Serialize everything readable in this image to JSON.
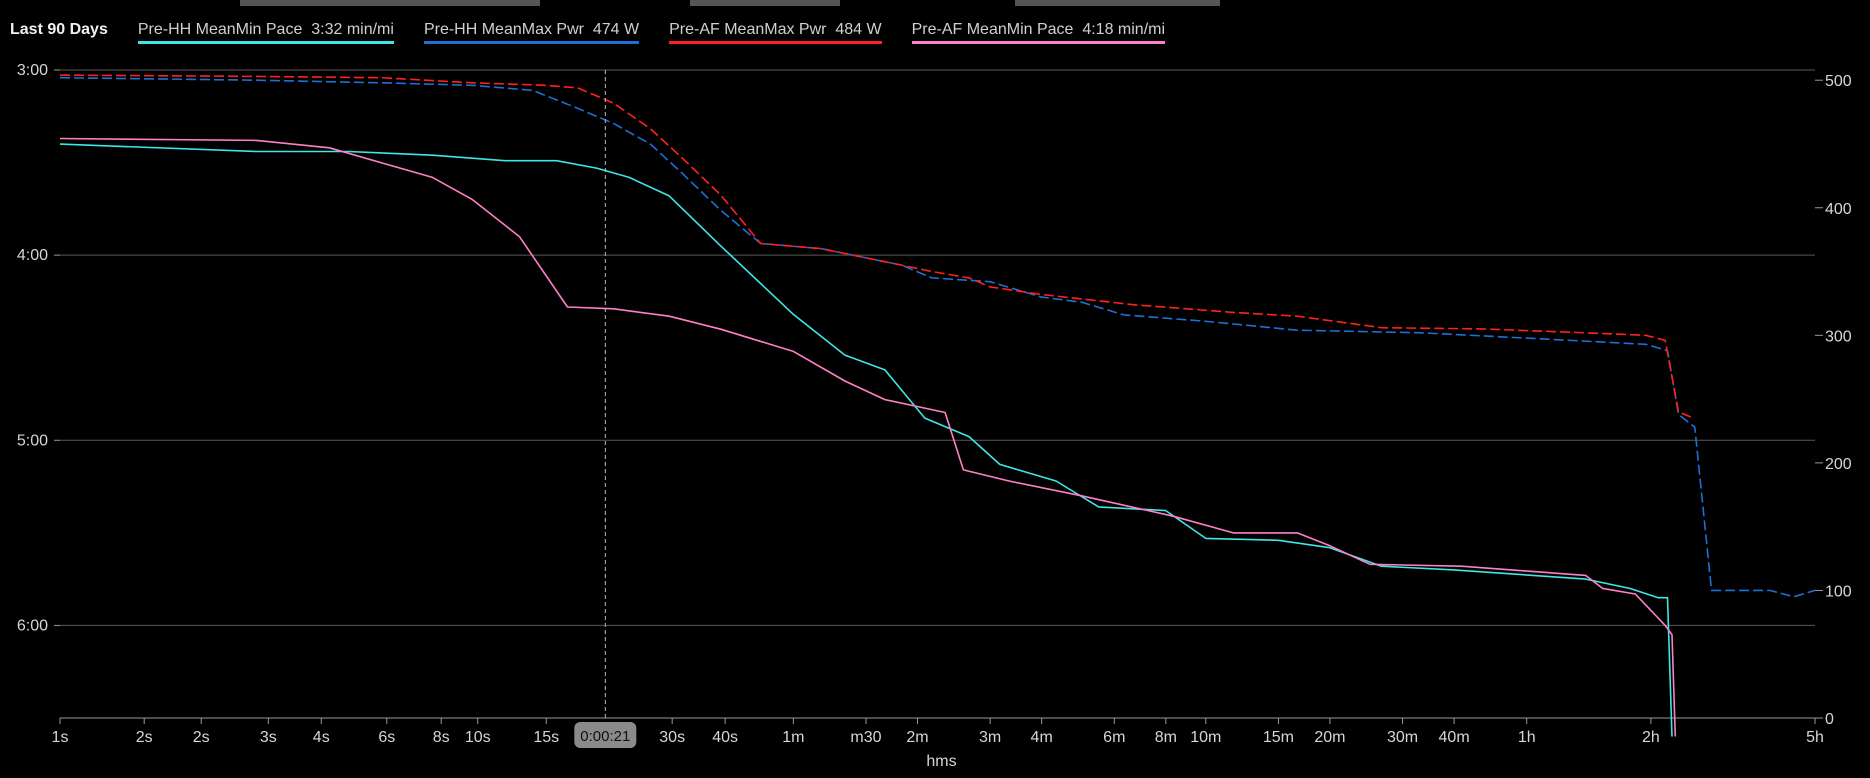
{
  "legend": {
    "period": "Last 90 Days",
    "items": [
      {
        "label": "Pre-HH MeanMin Pace  3:32 min/mi",
        "color": "#3ee6e6"
      },
      {
        "label": "Pre-HH MeanMax Pwr  474 W",
        "color": "#1f6fd6"
      },
      {
        "label": "Pre-AF MeanMax Pwr  484 W",
        "color": "#ff2020"
      },
      {
        "label": "Pre-AF MeanMin Pace  4:18 min/mi",
        "color": "#ff80c8"
      }
    ]
  },
  "cursor": {
    "label": "0:00:21",
    "x": 21
  },
  "chart_data": {
    "type": "line",
    "xlabel": "hms",
    "x_scale": "log",
    "x_range_seconds": [
      1,
      18000
    ],
    "x_ticks": [
      {
        "label": "1s",
        "s": 1
      },
      {
        "label": "2s",
        "s": 1.6
      },
      {
        "label": "2s",
        "s": 2.2
      },
      {
        "label": "3s",
        "s": 3.2
      },
      {
        "label": "4s",
        "s": 4.3
      },
      {
        "label": "6s",
        "s": 6.2
      },
      {
        "label": "8s",
        "s": 8.4
      },
      {
        "label": "10s",
        "s": 10.3
      },
      {
        "label": "15s",
        "s": 15.1
      },
      {
        "label": "30s",
        "s": 30.5
      },
      {
        "label": "40s",
        "s": 41
      },
      {
        "label": "1m",
        "s": 60
      },
      {
        "label": "m30",
        "s": 90
      },
      {
        "label": "2m",
        "s": 120
      },
      {
        "label": "3m",
        "s": 180
      },
      {
        "label": "4m",
        "s": 240
      },
      {
        "label": "6m",
        "s": 360
      },
      {
        "label": "8m",
        "s": 480
      },
      {
        "label": "10m",
        "s": 600
      },
      {
        "label": "15m",
        "s": 900
      },
      {
        "label": "20m",
        "s": 1200
      },
      {
        "label": "30m",
        "s": 1800
      },
      {
        "label": "40m",
        "s": 2400
      },
      {
        "label": "1h",
        "s": 3600
      },
      {
        "label": "2h",
        "s": 7200
      },
      {
        "label": "5h",
        "s": 18000
      }
    ],
    "y_left": {
      "unit": "min/mi",
      "range_minutes": [
        3.0,
        6.5
      ],
      "ticks": [
        {
          "label": "3:00",
          "v": 3.0
        },
        {
          "label": "4:00",
          "v": 4.0
        },
        {
          "label": "5:00",
          "v": 5.0
        },
        {
          "label": "6:00",
          "v": 6.0
        }
      ]
    },
    "y_right": {
      "unit": "W",
      "range": [
        0,
        508
      ],
      "ticks": [
        500,
        400,
        300,
        200,
        100,
        0
      ]
    },
    "series": [
      {
        "name": "Pre-HH MeanMin Pace  3:32 min/mi",
        "axis": "left",
        "style": "solid",
        "color": "#3ee6e6",
        "points": [
          [
            1,
            3.4
          ],
          [
            3,
            3.44
          ],
          [
            5,
            3.44
          ],
          [
            8,
            3.46
          ],
          [
            12,
            3.49
          ],
          [
            16,
            3.49
          ],
          [
            20,
            3.53
          ],
          [
            24,
            3.58
          ],
          [
            30,
            3.68
          ],
          [
            40,
            3.95
          ],
          [
            60,
            4.32
          ],
          [
            80,
            4.54
          ],
          [
            100,
            4.62
          ],
          [
            125,
            4.88
          ],
          [
            160,
            4.98
          ],
          [
            190,
            5.13
          ],
          [
            260,
            5.22
          ],
          [
            330,
            5.36
          ],
          [
            480,
            5.38
          ],
          [
            600,
            5.53
          ],
          [
            900,
            5.54
          ],
          [
            1200,
            5.58
          ],
          [
            1600,
            5.68
          ],
          [
            2400,
            5.7
          ],
          [
            5000,
            5.75
          ],
          [
            6400,
            5.8
          ],
          [
            7500,
            5.85
          ],
          [
            7900,
            5.85
          ],
          [
            8100,
            6.6
          ]
        ]
      },
      {
        "name": "Pre-HH MeanMax Pwr  474 W",
        "axis": "right",
        "style": "dashed",
        "color": "#1f6fd6",
        "points": [
          [
            1,
            502
          ],
          [
            3,
            500
          ],
          [
            6,
            498
          ],
          [
            10,
            496
          ],
          [
            14,
            492
          ],
          [
            18,
            478
          ],
          [
            22,
            466
          ],
          [
            27,
            450
          ],
          [
            32,
            428
          ],
          [
            40,
            398
          ],
          [
            50,
            372
          ],
          [
            70,
            368
          ],
          [
            110,
            355
          ],
          [
            130,
            345
          ],
          [
            180,
            342
          ],
          [
            240,
            330
          ],
          [
            300,
            326
          ],
          [
            380,
            316
          ],
          [
            600,
            311
          ],
          [
            1000,
            304
          ],
          [
            2000,
            302
          ],
          [
            4000,
            297
          ],
          [
            7000,
            293
          ],
          [
            7900,
            288
          ],
          [
            8400,
            238
          ],
          [
            9200,
            228
          ],
          [
            10100,
            100
          ],
          [
            14000,
            100
          ],
          [
            16000,
            95
          ],
          [
            18000,
            100
          ]
        ]
      },
      {
        "name": "Pre-AF MeanMax Pwr  484 W",
        "axis": "right",
        "style": "dashed",
        "color": "#ff2020",
        "points": [
          [
            1,
            504
          ],
          [
            3,
            503
          ],
          [
            6,
            502
          ],
          [
            10,
            498
          ],
          [
            15,
            496
          ],
          [
            18,
            494
          ],
          [
            22,
            482
          ],
          [
            27,
            462
          ],
          [
            32,
            440
          ],
          [
            40,
            410
          ],
          [
            50,
            372
          ],
          [
            70,
            368
          ],
          [
            110,
            355
          ],
          [
            130,
            350
          ],
          [
            160,
            345
          ],
          [
            180,
            338
          ],
          [
            240,
            332
          ],
          [
            400,
            324
          ],
          [
            700,
            318
          ],
          [
            1000,
            315
          ],
          [
            1600,
            306
          ],
          [
            2800,
            305
          ],
          [
            5000,
            302
          ],
          [
            7000,
            300
          ],
          [
            7800,
            296
          ],
          [
            8400,
            240
          ],
          [
            9000,
            236
          ]
        ]
      },
      {
        "name": "Pre-AF MeanMin Pace  4:18 min/mi",
        "axis": "left",
        "style": "solid",
        "color": "#ff80c8",
        "points": [
          [
            1,
            3.37
          ],
          [
            3,
            3.38
          ],
          [
            4.5,
            3.42
          ],
          [
            6,
            3.5
          ],
          [
            8,
            3.58
          ],
          [
            10,
            3.7
          ],
          [
            13,
            3.9
          ],
          [
            17,
            4.28
          ],
          [
            22,
            4.29
          ],
          [
            30,
            4.33
          ],
          [
            40,
            4.4
          ],
          [
            60,
            4.52
          ],
          [
            80,
            4.68
          ],
          [
            100,
            4.78
          ],
          [
            140,
            4.85
          ],
          [
            155,
            5.16
          ],
          [
            200,
            5.22
          ],
          [
            300,
            5.3
          ],
          [
            500,
            5.41
          ],
          [
            700,
            5.5
          ],
          [
            1000,
            5.5
          ],
          [
            1200,
            5.57
          ],
          [
            1500,
            5.67
          ],
          [
            2500,
            5.68
          ],
          [
            5000,
            5.73
          ],
          [
            5500,
            5.8
          ],
          [
            6600,
            5.83
          ],
          [
            7800,
            6.0
          ],
          [
            8100,
            6.05
          ],
          [
            8250,
            6.6
          ]
        ]
      }
    ]
  }
}
